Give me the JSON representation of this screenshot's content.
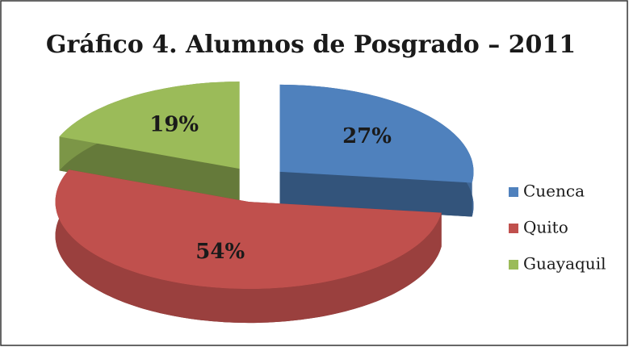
{
  "chart_data": {
    "type": "pie",
    "title": "Gráfico 4. Alumnos de Posgrado  – 2011",
    "categories": [
      "Cuenca",
      "Quito",
      "Guayaquil"
    ],
    "values": [
      27,
      54,
      19
    ],
    "value_labels": [
      "27%",
      "54%",
      "19%"
    ],
    "colors": [
      "#4f81bd",
      "#c0504d",
      "#9bbb59"
    ],
    "legend": "right"
  }
}
